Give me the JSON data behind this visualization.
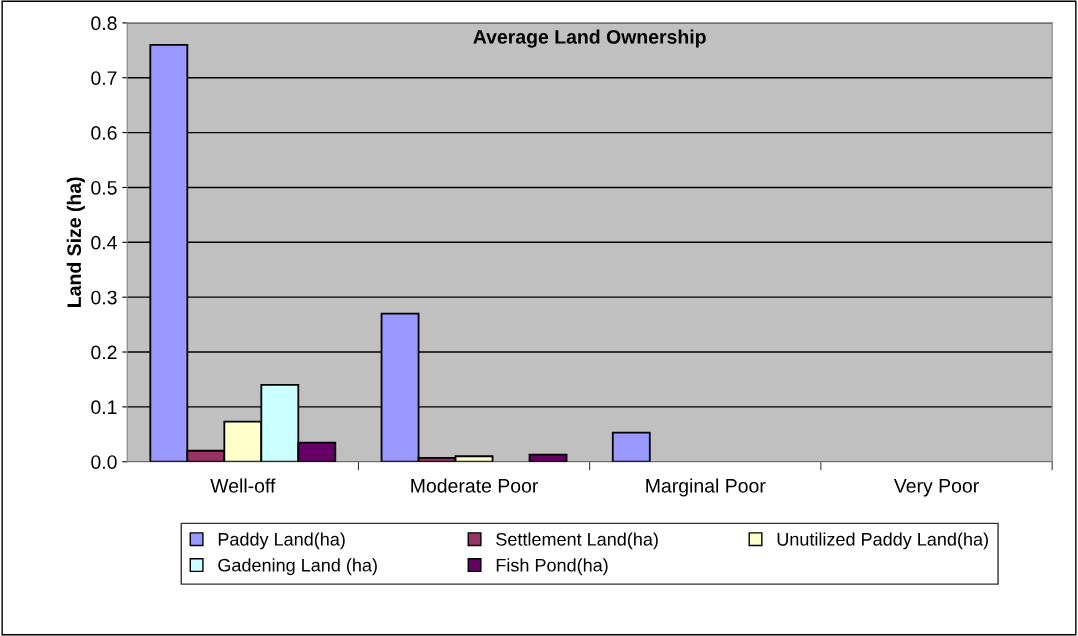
{
  "chart_data": {
    "type": "bar",
    "title": "Average Land Ownership",
    "ylabel": "Land Size (ha)",
    "categories": [
      "Well-off",
      "Moderate Poor",
      "Marginal Poor",
      "Very Poor"
    ],
    "series": [
      {
        "name": "Paddy Land(ha)",
        "color": "#9999ff",
        "values": [
          0.76,
          0.27,
          0.053,
          null
        ]
      },
      {
        "name": "Settlement Land(ha)",
        "color": "#993366",
        "values": [
          0.02,
          0.007,
          null,
          null
        ]
      },
      {
        "name": "Unutilized Paddy Land(ha)",
        "color": "#ffffcc",
        "values": [
          0.073,
          0.01,
          null,
          null
        ]
      },
      {
        "name": "Gadening Land (ha)",
        "color": "#ccffff",
        "values": [
          0.14,
          null,
          null,
          null
        ]
      },
      {
        "name": "Fish Pond(ha)",
        "color": "#660066",
        "values": [
          0.035,
          0.013,
          null,
          null
        ]
      }
    ],
    "ylim": [
      0,
      0.8
    ],
    "yticks": [
      {
        "value": 0,
        "label": "0.0"
      },
      {
        "value": 0.1,
        "label": "0.1"
      },
      {
        "value": 0.2,
        "label": "0.2"
      },
      {
        "value": 0.3,
        "label": "0.3"
      },
      {
        "value": 0.4,
        "label": "0.4"
      },
      {
        "value": 0.5,
        "label": "0.5"
      },
      {
        "value": 0.6,
        "label": "0.6"
      },
      {
        "value": 0.7,
        "label": "0.7"
      },
      {
        "value": 0.8,
        "label": "0.8"
      }
    ],
    "grid": "y",
    "legend": "bottom"
  }
}
